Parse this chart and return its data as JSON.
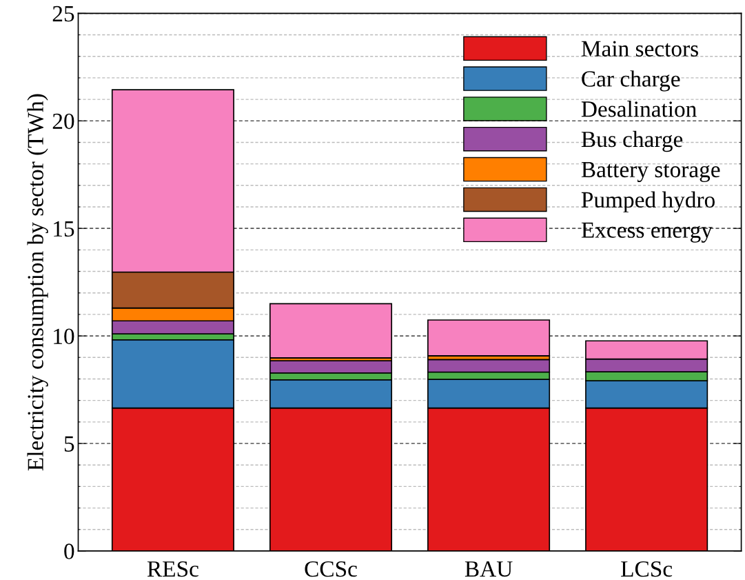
{
  "chart_data": {
    "type": "bar",
    "stacked": true,
    "ylabel": "Electricity consumption by sector (TWh)",
    "categories": [
      "RESc",
      "CCSc",
      "BAU",
      "LCSc"
    ],
    "series": [
      {
        "name": "Main sectors",
        "color": "#e31a1c",
        "values": [
          6.65,
          6.65,
          6.65,
          6.65
        ]
      },
      {
        "name": "Car charge",
        "color": "#377eb8",
        "values": [
          3.17,
          1.31,
          1.33,
          1.27
        ]
      },
      {
        "name": "Desalination",
        "color": "#4daf4a",
        "values": [
          0.28,
          0.32,
          0.34,
          0.41
        ]
      },
      {
        "name": "Bus charge",
        "color": "#984ea3",
        "values": [
          0.6,
          0.57,
          0.58,
          0.6
        ]
      },
      {
        "name": "Battery storage",
        "color": "#ff7f00",
        "values": [
          0.6,
          0.13,
          0.18,
          0
        ]
      },
      {
        "name": "Pumped hydro",
        "color": "#a65628",
        "values": [
          1.67,
          0,
          0,
          0
        ]
      },
      {
        "name": "Excess energy",
        "color": "#f781bf",
        "values": [
          8.48,
          2.52,
          1.66,
          0.84
        ]
      }
    ],
    "ylim": [
      0,
      25
    ],
    "yticks": [
      0,
      5,
      10,
      15,
      20,
      25
    ],
    "grid": "y",
    "legend": "top right"
  }
}
